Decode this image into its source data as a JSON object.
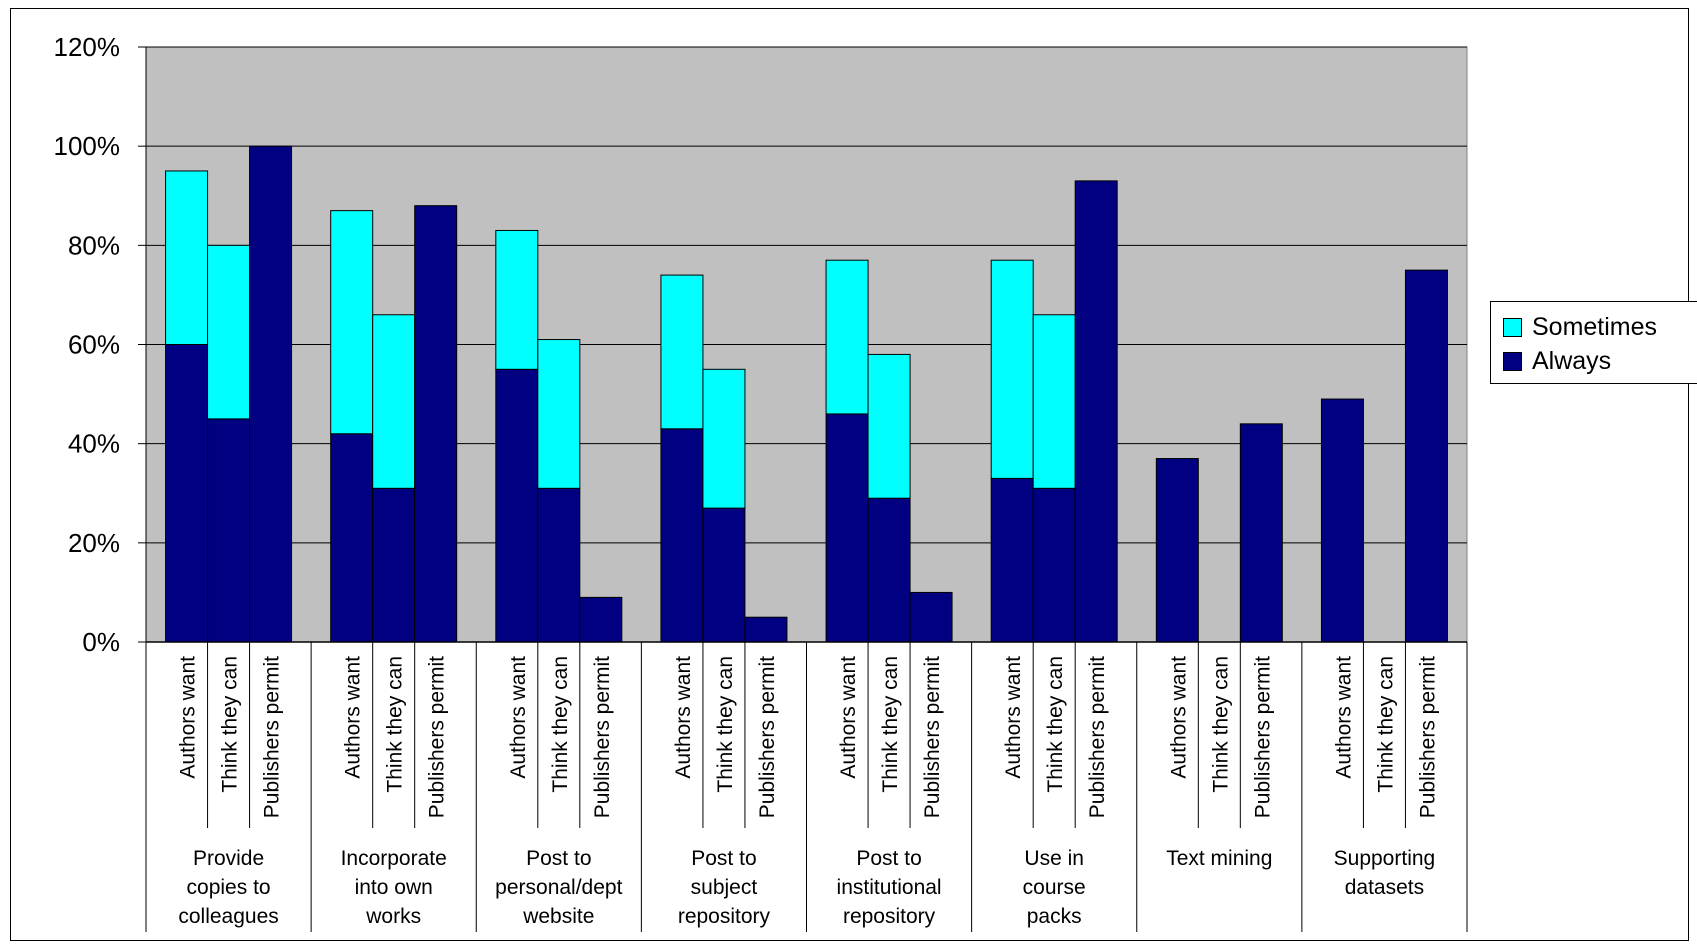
{
  "chart_data": {
    "type": "bar",
    "stacked": true,
    "groups": [
      {
        "label": "Provide copies to colleagues",
        "lines": [
          "Provide",
          "copies to",
          "colleagues"
        ]
      },
      {
        "label": "Incorporate into own works",
        "lines": [
          "Incorporate",
          "into own",
          "works"
        ]
      },
      {
        "label": "Post to personal/dept website",
        "lines": [
          "Post to",
          "personal/dept",
          "website"
        ]
      },
      {
        "label": "Post to subject repository",
        "lines": [
          "Post to",
          "subject",
          "repository"
        ]
      },
      {
        "label": "Post to institutional repository",
        "lines": [
          "Post to",
          "institutional",
          "repository"
        ]
      },
      {
        "label": "Use in course packs",
        "lines": [
          "Use in",
          "course",
          "packs"
        ]
      },
      {
        "label": "Text mining",
        "lines": [
          "Text mining"
        ]
      },
      {
        "label": "Supporting datasets",
        "lines": [
          "Supporting",
          "datasets"
        ]
      }
    ],
    "subcategories": [
      "Authors want",
      "Think they can",
      "Publishers permit"
    ],
    "series": [
      {
        "name": "Always",
        "color": "#000080",
        "values": [
          [
            60,
            45,
            100
          ],
          [
            42,
            31,
            88
          ],
          [
            55,
            31,
            9
          ],
          [
            43,
            27,
            5
          ],
          [
            46,
            29,
            10
          ],
          [
            33,
            31,
            93
          ],
          [
            37,
            0,
            44
          ],
          [
            49,
            0,
            75
          ]
        ]
      },
      {
        "name": "Sometimes",
        "color": "#00FFFF",
        "values": [
          [
            35,
            35,
            0
          ],
          [
            45,
            35,
            0
          ],
          [
            28,
            30,
            0
          ],
          [
            31,
            28,
            0
          ],
          [
            31,
            29,
            0
          ],
          [
            44,
            35,
            0
          ],
          [
            0,
            0,
            0
          ],
          [
            0,
            0,
            0
          ]
        ]
      }
    ],
    "ylim": [
      0,
      120
    ],
    "yticks": [
      "0%",
      "20%",
      "40%",
      "60%",
      "80%",
      "100%",
      "120%"
    ],
    "grid": true,
    "plot_background": "#C0C0C0",
    "legend_position": "right",
    "legend": [
      {
        "label": "Sometimes",
        "color": "#00FFFF"
      },
      {
        "label": "Always",
        "color": "#000080"
      }
    ]
  }
}
